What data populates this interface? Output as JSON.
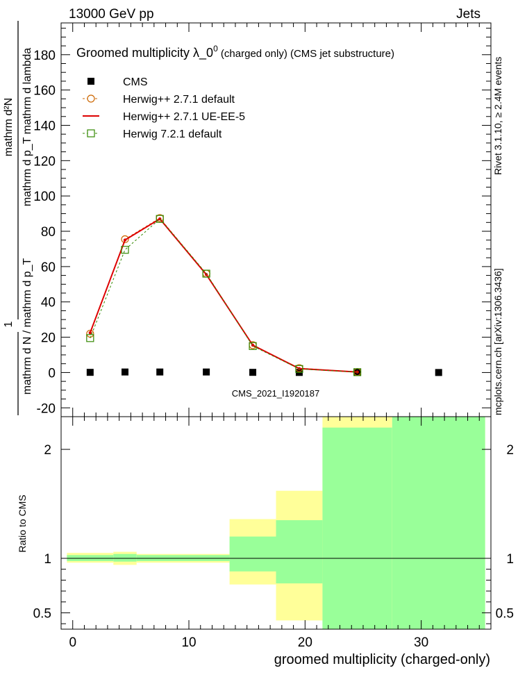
{
  "header": {
    "left": "13000 GeV pp",
    "right": "Jets"
  },
  "side_labels": {
    "rivet": "Rivet 3.1.10, ≥ 2.4M events",
    "mcplots": "mcplots.cern.ch [arXiv:1306.3436]"
  },
  "chart_data": [
    {
      "type": "line",
      "panel": "main",
      "title_main": "Groomed multiplicity  λ_0",
      "title_sup": "0",
      "title_suffix": " (charged only) (CMS jet substructure)",
      "ylabel_top_line1": "mathrm d²N",
      "ylabel_top_line2": "mathrm d p_T mathrm d lambda",
      "ylabel_one": "1",
      "ylabel_bottom": "mathrm d N / mathrm d p_T",
      "xlim": [
        -1,
        36
      ],
      "ylim": [
        -25,
        198
      ],
      "yticks": [
        -20,
        0,
        20,
        40,
        60,
        80,
        100,
        120,
        140,
        160,
        180
      ],
      "watermark": "CMS_2021_I1920187",
      "series": [
        {
          "name": "CMS",
          "style": "data",
          "color": "#000000",
          "x": [
            1.5,
            4.5,
            7.5,
            11.5,
            15.5,
            19.5,
            24.5,
            31.5
          ],
          "y": [
            0.1,
            0.3,
            0.3,
            0.3,
            0.1,
            0.05,
            0.02,
            0.01
          ]
        },
        {
          "name": "Herwig++ 2.7.1 default",
          "style": "circle-dashed",
          "color": "#cc6600",
          "x": [
            1.5,
            4.5,
            7.5,
            11.5,
            15.5,
            19.5,
            24.5
          ],
          "y": [
            22,
            75.5,
            87.5,
            56,
            15.5,
            2.5,
            0.3
          ]
        },
        {
          "name": "Herwig++ 2.7.1 UE-EE-5",
          "style": "solid",
          "color": "#dd0000",
          "x": [
            1.5,
            4.5,
            7.5,
            11.5,
            15.5,
            19.5,
            24.5
          ],
          "y": [
            22.5,
            75,
            87,
            55.5,
            15.5,
            2.2,
            0.3
          ]
        },
        {
          "name": "Herwig 7.2.1 default",
          "style": "square-dashed",
          "color": "#338800",
          "x": [
            1.5,
            4.5,
            7.5,
            11.5,
            15.5,
            19.5,
            24.5
          ],
          "y": [
            19.5,
            69.5,
            87,
            56,
            15,
            2,
            0.2
          ]
        }
      ]
    },
    {
      "type": "area",
      "panel": "ratio",
      "ylabel": "Ratio to CMS",
      "xlabel": "groomed multiplicity (charged-only)",
      "xlim": [
        -1,
        36
      ],
      "ylim": [
        0.35,
        2.3
      ],
      "yticks": [
        0.5,
        1,
        2
      ],
      "xticks": [
        0,
        10,
        20,
        30
      ],
      "bands": [
        {
          "x0": -0.5,
          "x1": 3.5,
          "yellow": [
            0.96,
            1.05
          ],
          "green": [
            0.975,
            1.03
          ]
        },
        {
          "x0": 3.5,
          "x1": 5.5,
          "yellow": [
            0.94,
            1.06
          ],
          "green": [
            0.97,
            1.04
          ]
        },
        {
          "x0": 5.5,
          "x1": 13.5,
          "yellow": [
            0.96,
            1.04
          ],
          "green": [
            0.975,
            1.03
          ]
        },
        {
          "x0": 13.5,
          "x1": 17.5,
          "yellow": [
            0.76,
            1.36
          ],
          "green": [
            0.88,
            1.2
          ]
        },
        {
          "x0": 17.5,
          "x1": 21.5,
          "yellow": [
            0.43,
            1.62
          ],
          "green": [
            0.77,
            1.35
          ]
        },
        {
          "x0": 21.5,
          "x1": 27.5,
          "yellow": [
            0.35,
            2.3
          ],
          "green": [
            0.35,
            2.2
          ]
        },
        {
          "x0": 27.5,
          "x1": 35.5,
          "yellow": [
            0.35,
            2.3
          ],
          "green": [
            0.35,
            2.3
          ]
        }
      ]
    }
  ]
}
